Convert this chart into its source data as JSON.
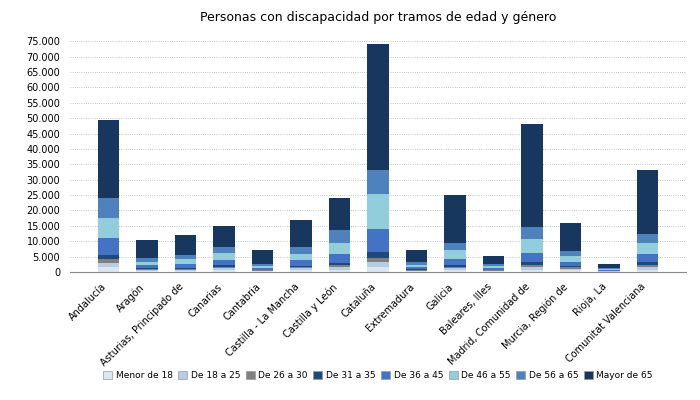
{
  "title": "Personas con discapacidad por tramos de edad y género",
  "categories": [
    "Andalucía",
    "Aragón",
    "Asturias, Principado de",
    "Canarias",
    "Cantabria",
    "Castilla - La Mancha",
    "Castilla y León",
    "Cataluña",
    "Extremadura",
    "Galicia",
    "Baleares, Illes",
    "Madrid, Comunidad de",
    "Murcia, Región de",
    "Rioja, La",
    "Comunitat Valenciana"
  ],
  "legend_labels": [
    "Menor de 18",
    "De 18 a 25",
    "De 26 a 30",
    "De 31 a 35",
    "De 36 a 45",
    "De 46 a 55",
    "De 56 a 65",
    "Mayor de 65"
  ],
  "colors": [
    "#dce6f1",
    "#b8cce4",
    "#808080",
    "#1f497d",
    "#4472c4",
    "#92cddc",
    "#4f81bd",
    "#17375e"
  ],
  "segments": {
    "Andalucía": [
      1500,
      1500,
      1200,
      1200,
      5500,
      6500,
      6500,
      25500
    ],
    "Aragón": [
      300,
      300,
      250,
      300,
      1000,
      1200,
      1100,
      5800
    ],
    "Asturias, Principado de": [
      350,
      400,
      300,
      350,
      1200,
      1500,
      1400,
      6600
    ],
    "Canarias": [
      600,
      600,
      500,
      500,
      1700,
      2200,
      2000,
      7000
    ],
    "Cantabria": [
      200,
      200,
      150,
      150,
      500,
      700,
      600,
      4700
    ],
    "Castilla - La Mancha": [
      550,
      600,
      450,
      500,
      1700,
      2200,
      2000,
      9000
    ],
    "Castilla y León": [
      750,
      800,
      650,
      700,
      2800,
      3800,
      4200,
      10300
    ],
    "Cataluña": [
      1500,
      1800,
      1400,
      1800,
      7500,
      11500,
      7500,
      41000
    ],
    "Extremadura": [
      200,
      250,
      180,
      200,
      700,
      900,
      800,
      3770
    ],
    "Galicia": [
      600,
      650,
      500,
      550,
      1900,
      2800,
      2500,
      15500
    ],
    "Baleares, Illes": [
      180,
      200,
      150,
      180,
      550,
      700,
      600,
      2640
    ],
    "Madrid, Comunidad de": [
      800,
      900,
      700,
      800,
      3000,
      4500,
      4000,
      33300
    ],
    "Murcia, Región de": [
      500,
      550,
      420,
      480,
      1400,
      1900,
      1700,
      9050
    ],
    "Rioja, La": [
      90,
      100,
      80,
      90,
      280,
      380,
      350,
      1130
    ],
    "Comunitat Valenciana": [
      800,
      900,
      700,
      800,
      2600,
      3600,
      3100,
      20500
    ]
  },
  "ylim": [
    0,
    78000
  ],
  "fig_width": 7.0,
  "fig_height": 4.0,
  "dpi": 100
}
